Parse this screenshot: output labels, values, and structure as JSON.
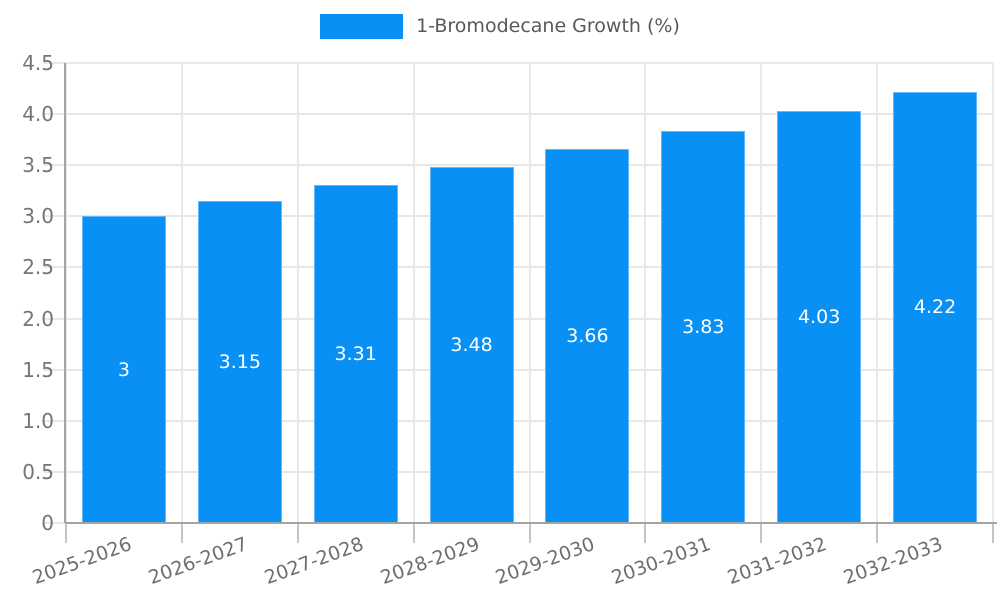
{
  "chart_data": {
    "type": "bar",
    "title": "",
    "legend": {
      "label": "1-Bromodecane Growth (%)",
      "position": "top-center"
    },
    "categories": [
      "2025-2026",
      "2026-2027",
      "2027-2028",
      "2028-2029",
      "2029-2030",
      "2030-2031",
      "2031-2032",
      "2032-2033"
    ],
    "series": [
      {
        "name": "1-Bromodecane Growth (%)",
        "values": [
          3,
          3.15,
          3.31,
          3.48,
          3.66,
          3.83,
          4.03,
          4.22
        ],
        "value_labels": [
          "3",
          "3.15",
          "3.31",
          "3.48",
          "3.66",
          "3.83",
          "4.03",
          "4.22"
        ]
      }
    ],
    "xlabel": "",
    "ylabel": "",
    "ylim": [
      0,
      4.5
    ],
    "ytick_step": 0.5,
    "ytick_labels": [
      "0",
      "0.5",
      "1.0",
      "1.5",
      "2.0",
      "2.5",
      "3.0",
      "3.5",
      "4.0",
      "4.5"
    ],
    "grid": "horizontal and vertical, light gray",
    "bar_label_position": "inside-center",
    "xtick_rotation_deg": -20,
    "colors": {
      "bar": "#0990f5",
      "bar_edge": "#62b8fa",
      "grid": "#e8e8e8",
      "axis": "#a3a3a3",
      "tick": "#c4c4c4",
      "ytick_label": "#757575",
      "xtick_label": "#6e6e6e",
      "legend_text": "#595959",
      "value_label": "#ffffff",
      "background": "#ffffff"
    }
  }
}
